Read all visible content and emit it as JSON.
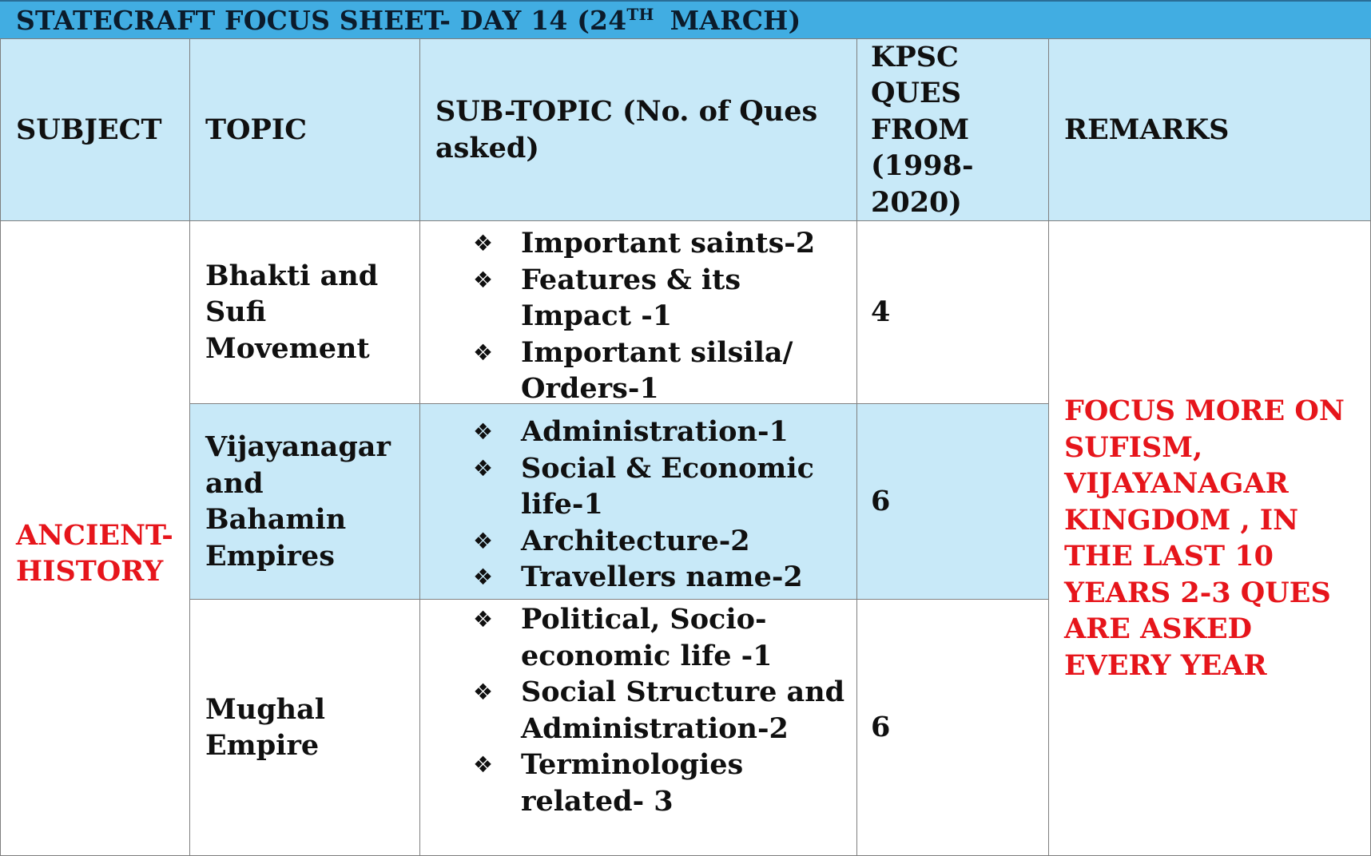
{
  "title": {
    "prefix": "STATECRAFT FOCUS SHEET- DAY 14 (24",
    "superscript": "TH",
    "suffix": "MARCH)"
  },
  "headers": {
    "subject": "SUBJECT",
    "topic": "TOPIC",
    "subtopic": "SUB-TOPIC (No. of Ques asked)",
    "kpsc": "KPSC QUES FROM (1998-2020)",
    "remarks": "REMARKS"
  },
  "bullet_glyph": "❖",
  "subject": "ANCIENT-HISTORY",
  "remarks": "FOCUS MORE ON SUFISM, VIJAYANAGAR KINGDOM , IN THE LAST 10 YEARS 2-3 QUES ARE ASKED EVERY YEAR",
  "colors": {
    "title_bar": "#41ade2",
    "header_fill": "#c8e9f8",
    "highlight_text": "#e6151b"
  },
  "rows": [
    {
      "topic": "Bhakti and Sufi Movement",
      "subtopics": [
        "Important saints-2",
        "Features & its Impact -1",
        "Important silsila/ Orders-1"
      ],
      "kpsc_count": "4"
    },
    {
      "topic": "Vijayanagar and Bahamin Empires",
      "subtopics": [
        "Administration-1",
        "Social & Economic life-1",
        "Architecture-2",
        "Travellers name-2"
      ],
      "kpsc_count": "6"
    },
    {
      "topic": "Mughal Empire",
      "subtopics": [
        "Political, Socio-economic life -1",
        "Social Structure and Administration-2",
        "Terminologies related- 3"
      ],
      "kpsc_count": "6"
    }
  ]
}
